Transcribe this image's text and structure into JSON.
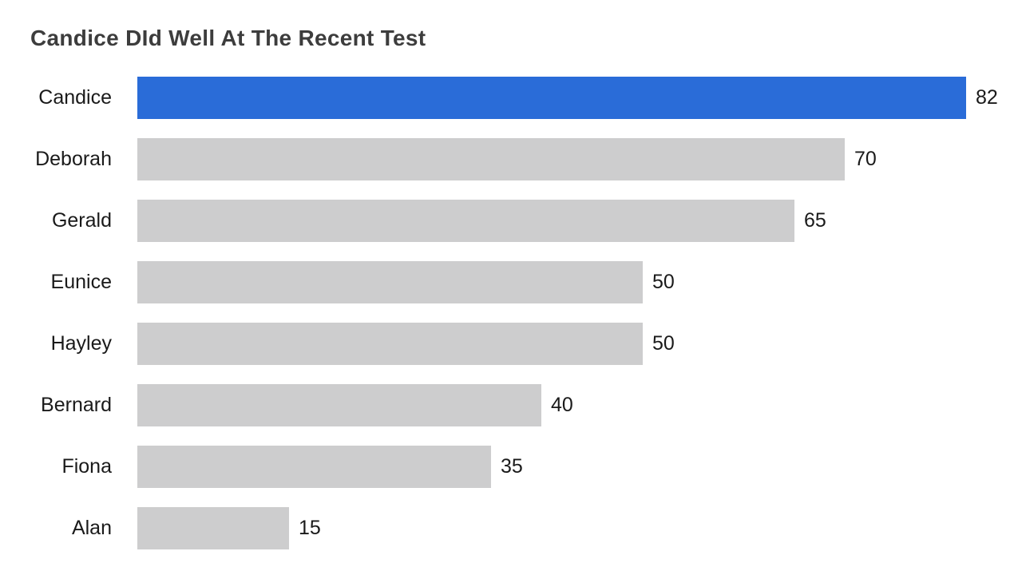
{
  "chart_data": {
    "type": "bar",
    "orientation": "horizontal",
    "title": "Candice DId Well At The Recent Test",
    "categories": [
      "Candice",
      "Deborah",
      "Gerald",
      "Eunice",
      "Hayley",
      "Bernard",
      "Fiona",
      "Alan"
    ],
    "values": [
      82,
      70,
      65,
      50,
      50,
      40,
      35,
      15
    ],
    "xlim": [
      0,
      82
    ],
    "value_labels_shown": true,
    "grid": false,
    "legend": false,
    "highlight_category": "Candice",
    "colors": {
      "bar_highlight": "#2a6cd8",
      "bar_default": "#cdcdce",
      "title_text": "#3d3d3d",
      "label_text": "#1a1a1a",
      "background": "#ffffff"
    }
  }
}
